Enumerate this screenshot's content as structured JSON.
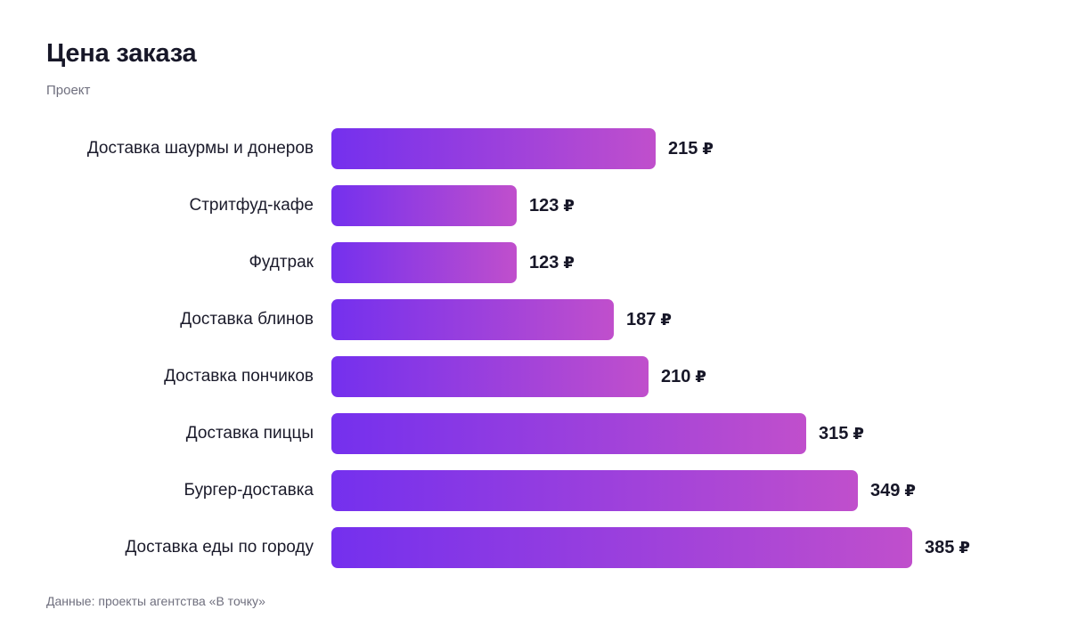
{
  "chart_data": {
    "type": "bar",
    "orientation": "horizontal",
    "title": "Цена заказа",
    "subtitle": "Проект",
    "source": "Данные: проекты агентства «В точку»",
    "currency": "₽",
    "categories": [
      "Доставка шаурмы и донеров",
      "Стритфуд-кафе",
      "Фудтрак",
      "Доставка блинов",
      "Доставка пончиков",
      "Доставка пиццы",
      "Бургер-доставка",
      "Доставка еды по городу"
    ],
    "values": [
      215,
      123,
      123,
      187,
      210,
      315,
      349,
      385
    ],
    "xlim": [
      0,
      385
    ],
    "grid": false,
    "legend": "none",
    "colors": {
      "bar_gradient_start": "#7430ee",
      "bar_gradient_end": "#c04fcc",
      "text": "#171728",
      "muted": "#6f6f7e"
    }
  }
}
